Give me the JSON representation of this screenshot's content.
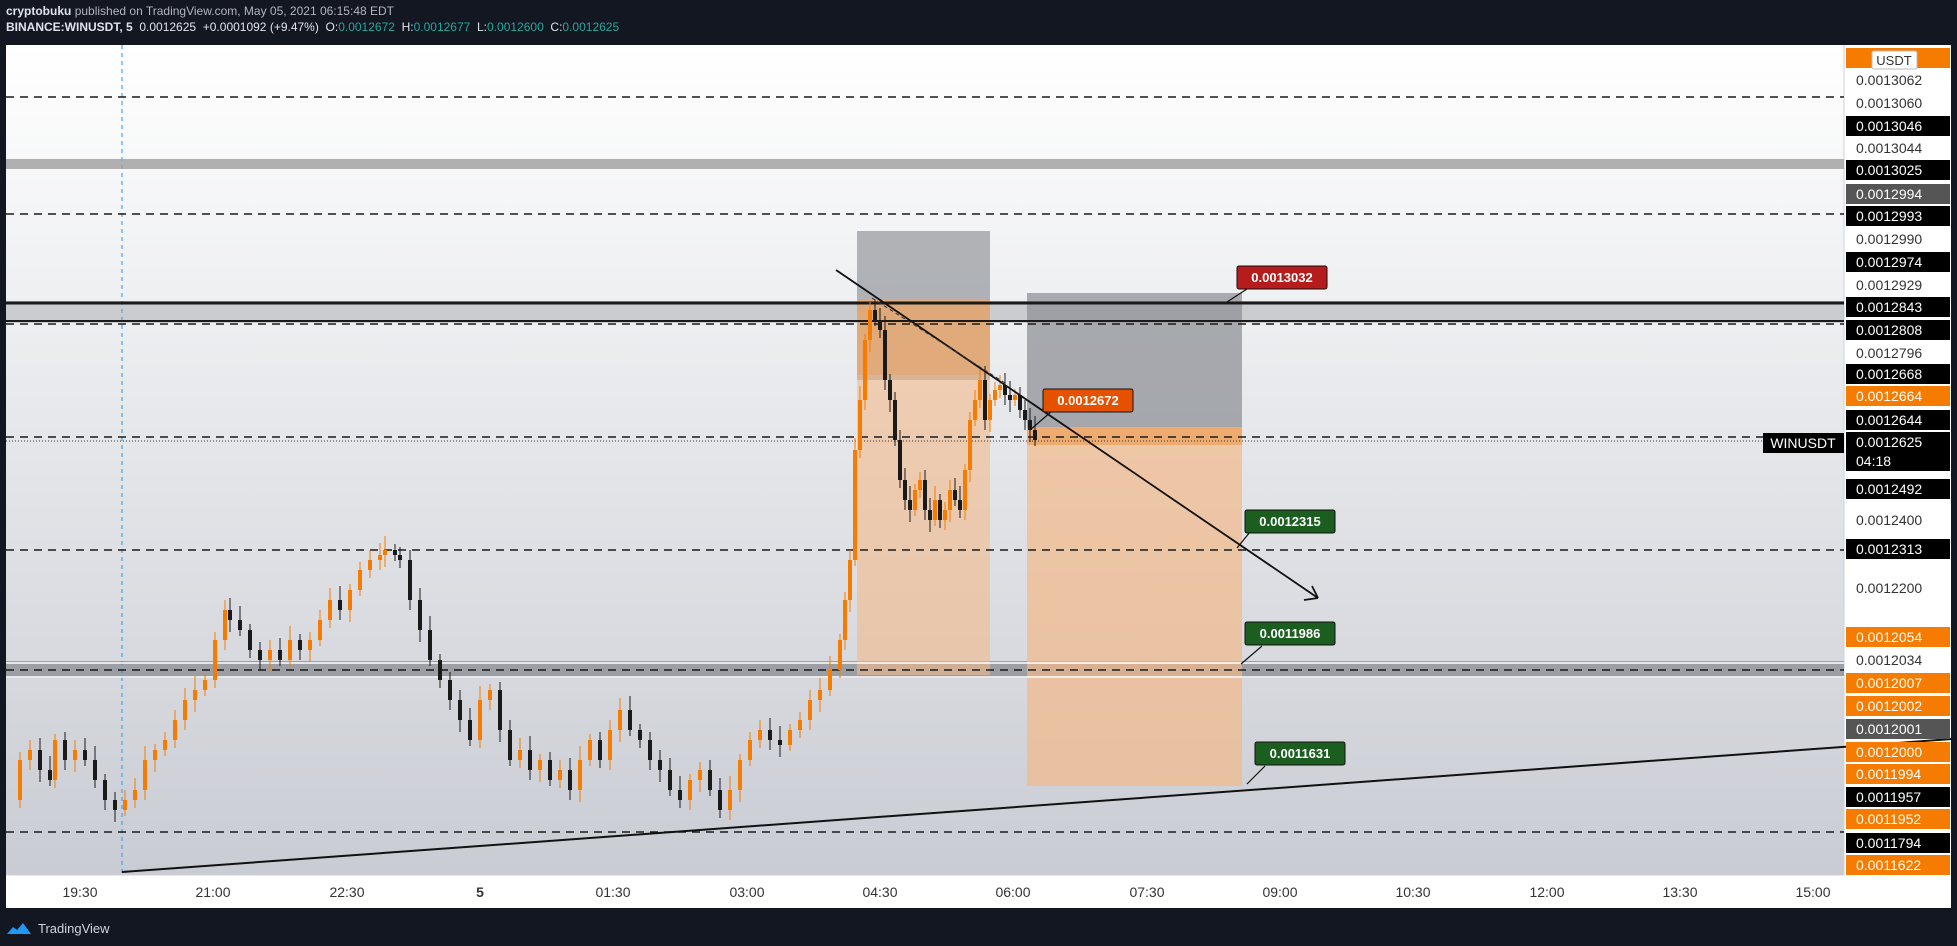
{
  "header": {
    "publisher": "cryptobuku",
    "published_text": "published on TradingView.com, May 05, 2021 06:15:48 EDT",
    "symbol": "BINANCE:WINUSDT, 5",
    "last": "0.0012625",
    "change": "+0.0001092 (+9.47%)",
    "o_label": "O:",
    "o_value": "0.0012672",
    "h_label": "H:",
    "h_value": "0.0012677",
    "l_label": "L:",
    "l_value": "0.0012600",
    "c_label": "C:",
    "c_value": "0.0012625"
  },
  "footer": {
    "brand": "TradingView"
  },
  "chart_data": {
    "type": "candlestick",
    "symbol": "WINUSDT",
    "interval": "5",
    "currency": "USDT",
    "last_price": "0.0012625",
    "countdown": "04:18",
    "x_ticks": [
      "19:30",
      "21:00",
      "22:30",
      "5",
      "01:30",
      "03:00",
      "04:30",
      "06:00",
      "07:30",
      "09:00",
      "10:30",
      "12:00",
      "13:30",
      "15:00"
    ],
    "y_labels": [
      {
        "text": "0.0013062",
        "style": "plain"
      },
      {
        "text": "0.0013060",
        "style": "plain"
      },
      {
        "text": "0.0013046",
        "style": "black"
      },
      {
        "text": "0.0013044",
        "style": "plain"
      },
      {
        "text": "0.0013025",
        "style": "black"
      },
      {
        "text": "0.0012994",
        "style": "gray"
      },
      {
        "text": "0.0012993",
        "style": "black"
      },
      {
        "text": "0.0012990",
        "style": "plain"
      },
      {
        "text": "0.0012974",
        "style": "black"
      },
      {
        "text": "0.0012929",
        "style": "plain"
      },
      {
        "text": "0.0012843",
        "style": "black"
      },
      {
        "text": "0.0012808",
        "style": "black"
      },
      {
        "text": "0.0012796",
        "style": "plain"
      },
      {
        "text": "0.0012668",
        "style": "black"
      },
      {
        "text": "0.0012664",
        "style": "orange"
      },
      {
        "text": "0.0012644",
        "style": "black"
      },
      {
        "text": "0.0012625",
        "style": "black"
      },
      {
        "text": "04:18",
        "style": "black"
      },
      {
        "text": "0.0012492",
        "style": "black"
      },
      {
        "text": "0.0012400",
        "style": "plain"
      },
      {
        "text": "0.0012313",
        "style": "black"
      },
      {
        "text": "0.0012200",
        "style": "plain"
      },
      {
        "text": "0.0012054",
        "style": "orange"
      },
      {
        "text": "0.0012034",
        "style": "plain"
      },
      {
        "text": "0.0012007",
        "style": "orange"
      },
      {
        "text": "0.0012002",
        "style": "orange"
      },
      {
        "text": "0.0012001",
        "style": "gray"
      },
      {
        "text": "0.0012000",
        "style": "orange"
      },
      {
        "text": "0.0011994",
        "style": "orange"
      },
      {
        "text": "0.0011957",
        "style": "black"
      },
      {
        "text": "0.0011952",
        "style": "orange"
      },
      {
        "text": "0.0011794",
        "style": "black"
      },
      {
        "text": "0.0011622",
        "style": "orange"
      }
    ],
    "annotations": [
      {
        "text": "0.0013032",
        "color": "#b71c1c"
      },
      {
        "text": "0.0012672",
        "color": "#e65100"
      },
      {
        "text": "0.0012315",
        "color": "#1b5e20"
      },
      {
        "text": "0.0011986",
        "color": "#1b5e20"
      },
      {
        "text": "0.0011631",
        "color": "#1b5e20"
      }
    ],
    "candle_up_color": "#f57c00",
    "candle_down_color": "#1a1a1a",
    "grid": false
  }
}
